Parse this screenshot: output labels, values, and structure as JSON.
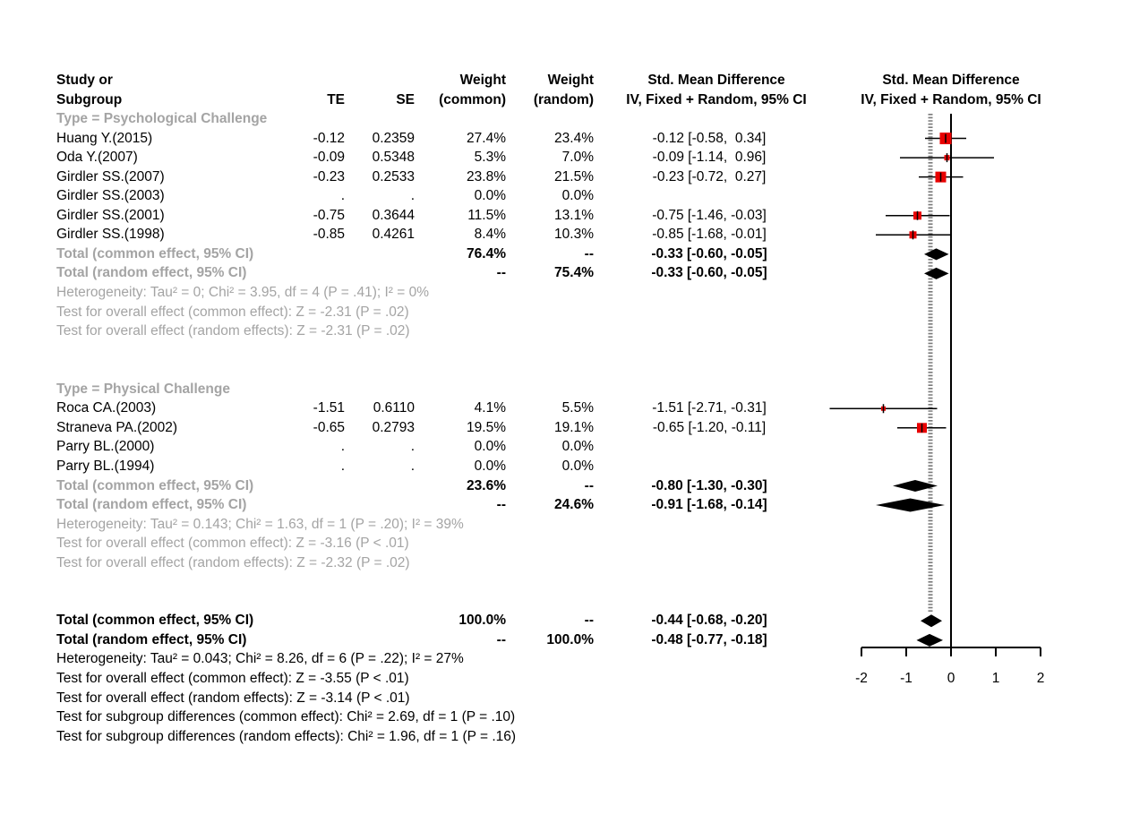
{
  "header": {
    "col_study_line1": "Study or",
    "col_study_line2": "Subgroup",
    "col_te": "TE",
    "col_se": "SE",
    "col_weight_common_line1": "Weight",
    "col_weight_common_line2": "(common)",
    "col_weight_random_line1": "Weight",
    "col_weight_random_line2": "(random)",
    "col_smd_text_line1": "Std. Mean Difference",
    "col_smd_text_line2": "IV, Fixed + Random, 95% CI",
    "col_smd_plot_line1": "Std. Mean Difference",
    "col_smd_plot_line2": "IV, Fixed + Random, 95% CI"
  },
  "colors": {
    "square": "#e80000",
    "gray_text": "#a4a4a4",
    "reference_line": "#7a7a7a",
    "black": "#000000"
  },
  "axis": {
    "tick_labels": [
      "-2",
      "-1",
      "0",
      "1",
      "2"
    ],
    "tick_values": [
      -2,
      -1,
      0,
      1,
      2
    ]
  },
  "rows": [
    {
      "kind": "subgroup",
      "label": "Type = Psychological Challenge"
    },
    {
      "kind": "study",
      "label": "Huang Y.(2015)",
      "te": "-0.12",
      "se": "0.2359",
      "wc": "27.4%",
      "wr": "23.4%",
      "ci": "-0.12 [-0.58,  0.34]",
      "plot": {
        "type": "square",
        "est": -0.12,
        "lo": -0.58,
        "hi": 0.34,
        "size": 13
      }
    },
    {
      "kind": "study",
      "label": "Oda Y.(2007)",
      "te": "-0.09",
      "se": "0.5348",
      "wc": "5.3%",
      "wr": "7.0%",
      "ci": "-0.09 [-1.14,  0.96]",
      "plot": {
        "type": "square",
        "est": -0.09,
        "lo": -1.14,
        "hi": 0.96,
        "size": 6
      }
    },
    {
      "kind": "study",
      "label": "Girdler SS.(2007)",
      "te": "-0.23",
      "se": "0.2533",
      "wc": "23.8%",
      "wr": "21.5%",
      "ci": "-0.23 [-0.72,  0.27]",
      "plot": {
        "type": "square",
        "est": -0.23,
        "lo": -0.72,
        "hi": 0.27,
        "size": 12
      }
    },
    {
      "kind": "study",
      "label": "Girdler SS.(2003)",
      "te": ".",
      "se": ".",
      "wc": "0.0%",
      "wr": "0.0%",
      "ci": ""
    },
    {
      "kind": "study",
      "label": "Girdler SS.(2001)",
      "te": "-0.75",
      "se": "0.3644",
      "wc": "11.5%",
      "wr": "13.1%",
      "ci": "-0.75 [-1.46, -0.03]",
      "plot": {
        "type": "square",
        "est": -0.75,
        "lo": -1.46,
        "hi": -0.03,
        "size": 9
      }
    },
    {
      "kind": "study",
      "label": "Girdler SS.(1998)",
      "te": "-0.85",
      "se": "0.4261",
      "wc": "8.4%",
      "wr": "10.3%",
      "ci": "-0.85 [-1.68, -0.01]",
      "plot": {
        "type": "square",
        "est": -0.85,
        "lo": -1.68,
        "hi": -0.01,
        "size": 8
      }
    },
    {
      "kind": "total",
      "label": "Total (common effect, 95% CI)",
      "wc": "76.4%",
      "wr": "--",
      "ci": "-0.33 [-0.60, -0.05]",
      "plot": {
        "type": "diamond",
        "est": -0.33,
        "lo": -0.6,
        "hi": -0.05,
        "hh": 6.5
      }
    },
    {
      "kind": "total",
      "label": "Total (random effect, 95% CI)",
      "wc": "--",
      "wr": "75.4%",
      "ci": "-0.33 [-0.60, -0.05]",
      "plot": {
        "type": "diamond",
        "est": -0.33,
        "lo": -0.6,
        "hi": -0.05,
        "hh": 6.5
      }
    },
    {
      "kind": "note",
      "label": "Heterogeneity: Tau² = 0; Chi² = 3.95, df = 4 (P = .41); I² = 0%"
    },
    {
      "kind": "note",
      "label": "Test for overall effect (common effect): Z = -2.31 (P = .02)"
    },
    {
      "kind": "note",
      "label": "Test for overall effect (random effects): Z = -2.31 (P = .02)"
    },
    {
      "kind": "spacer"
    },
    {
      "kind": "spacer"
    },
    {
      "kind": "subgroup",
      "label": "Type = Physical Challenge"
    },
    {
      "kind": "study",
      "label": "Roca CA.(2003)",
      "te": "-1.51",
      "se": "0.6110",
      "wc": "4.1%",
      "wr": "5.5%",
      "ci": "-1.51 [-2.71, -0.31]",
      "plot": {
        "type": "square",
        "est": -1.51,
        "lo": -2.71,
        "hi": -0.31,
        "size": 5
      }
    },
    {
      "kind": "study",
      "label": "Straneva PA.(2002)",
      "te": "-0.65",
      "se": "0.2793",
      "wc": "19.5%",
      "wr": "19.1%",
      "ci": "-0.65 [-1.20, -0.11]",
      "plot": {
        "type": "square",
        "est": -0.65,
        "lo": -1.2,
        "hi": -0.11,
        "size": 11
      }
    },
    {
      "kind": "study",
      "label": "Parry BL.(2000)",
      "te": ".",
      "se": ".",
      "wc": "0.0%",
      "wr": "0.0%",
      "ci": ""
    },
    {
      "kind": "study",
      "label": "Parry BL.(1994)",
      "te": ".",
      "se": ".",
      "wc": "0.0%",
      "wr": "0.0%",
      "ci": ""
    },
    {
      "kind": "total",
      "label": "Total (common effect, 95% CI)",
      "wc": "23.6%",
      "wr": "--",
      "ci": "-0.80 [-1.30, -0.30]",
      "plot": {
        "type": "diamond",
        "est": -0.8,
        "lo": -1.3,
        "hi": -0.3,
        "hh": 6.5
      }
    },
    {
      "kind": "total",
      "label": "Total (random effect, 95% CI)",
      "wc": "--",
      "wr": "24.6%",
      "ci": "-0.91 [-1.68, -0.14]",
      "plot": {
        "type": "diamond",
        "est": -0.91,
        "lo": -1.68,
        "hi": -0.14,
        "hh": 7.5
      }
    },
    {
      "kind": "note",
      "label": "Heterogeneity: Tau² = 0.143; Chi² = 1.63, df = 1 (P = .20); I² = 39%"
    },
    {
      "kind": "note",
      "label": "Test for overall effect (common effect): Z = -3.16 (P < .01)"
    },
    {
      "kind": "note",
      "label": "Test for overall effect (random effects): Z = -2.32 (P = .02)"
    },
    {
      "kind": "spacer"
    },
    {
      "kind": "spacer"
    },
    {
      "kind": "total",
      "emph": true,
      "label": "Total (common effect, 95% CI)",
      "wc": "100.0%",
      "wr": "--",
      "ci": "-0.44 [-0.68, -0.20]",
      "plot": {
        "type": "diamond",
        "est": -0.44,
        "lo": -0.68,
        "hi": -0.2,
        "hh": 7
      }
    },
    {
      "kind": "total",
      "emph": true,
      "label": "Total (random effect, 95% CI)",
      "wc": "--",
      "wr": "100.0%",
      "ci": "-0.48 [-0.77, -0.18]",
      "plot": {
        "type": "diamond",
        "est": -0.48,
        "lo": -0.77,
        "hi": -0.18,
        "hh": 7
      }
    },
    {
      "kind": "note",
      "black": true,
      "label": "Heterogeneity: Tau² = 0.043; Chi² = 8.26, df = 6 (P = .22); I² = 27%"
    },
    {
      "kind": "note",
      "black": true,
      "label": "Test for overall effect (common effect): Z = -3.55 (P < .01)"
    },
    {
      "kind": "note",
      "black": true,
      "label": "Test for overall effect (random effects): Z = -3.14 (P < .01)"
    },
    {
      "kind": "note",
      "black": true,
      "label": "Test for subgroup differences (common effect): Chi² = 2.69, df = 1 (P = .10)"
    },
    {
      "kind": "note",
      "black": true,
      "label": "Test for subgroup differences (random effects): Chi² = 1.96, df = 1 (P = .16)"
    }
  ],
  "chart_data": {
    "type": "scatter",
    "variant": "forest-plot-meta-analysis",
    "title": "Std. Mean Difference, IV, Fixed + Random, 95% CI",
    "xlabel": "Std. Mean Difference",
    "xlim": [
      -2,
      2
    ],
    "x_ticks": [
      -2,
      -1,
      0,
      1,
      2
    ],
    "reference_line_x": 0,
    "pooled_reference_lines_x": [
      -0.44,
      -0.48
    ],
    "subgroups": [
      {
        "name": "Type = Psychological Challenge",
        "studies": [
          {
            "study": "Huang Y.(2015)",
            "TE": -0.12,
            "SE": 0.2359,
            "weight_common_pct": 27.4,
            "weight_random_pct": 23.4,
            "ci95": [
              -0.58,
              0.34
            ]
          },
          {
            "study": "Oda Y.(2007)",
            "TE": -0.09,
            "SE": 0.5348,
            "weight_common_pct": 5.3,
            "weight_random_pct": 7.0,
            "ci95": [
              -1.14,
              0.96
            ]
          },
          {
            "study": "Girdler SS.(2007)",
            "TE": -0.23,
            "SE": 0.2533,
            "weight_common_pct": 23.8,
            "weight_random_pct": 21.5,
            "ci95": [
              -0.72,
              0.27
            ]
          },
          {
            "study": "Girdler SS.(2003)",
            "TE": null,
            "SE": null,
            "weight_common_pct": 0.0,
            "weight_random_pct": 0.0,
            "ci95": null
          },
          {
            "study": "Girdler SS.(2001)",
            "TE": -0.75,
            "SE": 0.3644,
            "weight_common_pct": 11.5,
            "weight_random_pct": 13.1,
            "ci95": [
              -1.46,
              -0.03
            ]
          },
          {
            "study": "Girdler SS.(1998)",
            "TE": -0.85,
            "SE": 0.4261,
            "weight_common_pct": 8.4,
            "weight_random_pct": 10.3,
            "ci95": [
              -1.68,
              -0.01
            ]
          }
        ],
        "total_common": {
          "est": -0.33,
          "ci95": [
            -0.6,
            -0.05
          ],
          "weight_common_pct": 76.4
        },
        "total_random": {
          "est": -0.33,
          "ci95": [
            -0.6,
            -0.05
          ],
          "weight_random_pct": 75.4
        },
        "heterogeneity": "Tau² = 0; Chi² = 3.95, df = 4 (P = .41); I² = 0%",
        "test_overall_common": "Z = -2.31 (P = .02)",
        "test_overall_random": "Z = -2.31 (P = .02)"
      },
      {
        "name": "Type = Physical Challenge",
        "studies": [
          {
            "study": "Roca CA.(2003)",
            "TE": -1.51,
            "SE": 0.611,
            "weight_common_pct": 4.1,
            "weight_random_pct": 5.5,
            "ci95": [
              -2.71,
              -0.31
            ]
          },
          {
            "study": "Straneva PA.(2002)",
            "TE": -0.65,
            "SE": 0.2793,
            "weight_common_pct": 19.5,
            "weight_random_pct": 19.1,
            "ci95": [
              -1.2,
              -0.11
            ]
          },
          {
            "study": "Parry BL.(2000)",
            "TE": null,
            "SE": null,
            "weight_common_pct": 0.0,
            "weight_random_pct": 0.0,
            "ci95": null
          },
          {
            "study": "Parry BL.(1994)",
            "TE": null,
            "SE": null,
            "weight_common_pct": 0.0,
            "weight_random_pct": 0.0,
            "ci95": null
          }
        ],
        "total_common": {
          "est": -0.8,
          "ci95": [
            -1.3,
            -0.3
          ],
          "weight_common_pct": 23.6
        },
        "total_random": {
          "est": -0.91,
          "ci95": [
            -1.68,
            -0.14
          ],
          "weight_random_pct": 24.6
        },
        "heterogeneity": "Tau² = 0.143; Chi² = 1.63, df = 1 (P = .20); I² = 39%",
        "test_overall_common": "Z = -3.16 (P < .01)",
        "test_overall_random": "Z = -2.32 (P = .02)"
      }
    ],
    "overall_common": {
      "est": -0.44,
      "ci95": [
        -0.68,
        -0.2
      ],
      "weight_common_pct": 100.0
    },
    "overall_random": {
      "est": -0.48,
      "ci95": [
        -0.77,
        -0.18
      ],
      "weight_random_pct": 100.0
    },
    "heterogeneity_overall": "Tau² = 0.043; Chi² = 8.26, df = 6 (P = .22); I² = 27%",
    "test_overall_common": "Z = -3.55 (P < .01)",
    "test_overall_random": "Z = -3.14 (P < .01)",
    "test_subgroup_common": "Chi² = 2.69, df = 1 (P = .10)",
    "test_subgroup_random": "Chi² = 1.96, df = 1 (P = .16)"
  }
}
